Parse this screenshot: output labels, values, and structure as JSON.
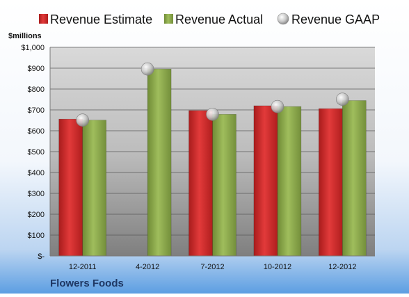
{
  "chart_data": {
    "type": "bar",
    "title": "",
    "company": "Flowers Foods",
    "unit_label": "$millions",
    "categories": [
      "12-2011",
      "4-2012",
      "7-2012",
      "10-2012",
      "12-2012"
    ],
    "series": [
      {
        "name": "Revenue Estimate",
        "kind": "bar",
        "color": "#d42a2a",
        "values": [
          656,
          null,
          697,
          720,
          706
        ]
      },
      {
        "name": "Revenue Actual",
        "kind": "bar",
        "color": "#8daa4c",
        "values": [
          651,
          896,
          679,
          716,
          745
        ]
      },
      {
        "name": "Revenue GAAP",
        "kind": "marker",
        "color": "#c8c8c8",
        "values": [
          651,
          896,
          679,
          716,
          751
        ]
      }
    ],
    "y_ticks": [
      "$-",
      "$100",
      "$200",
      "$300",
      "$400",
      "$500",
      "$600",
      "$700",
      "$800",
      "$900",
      "$1,000"
    ],
    "ylim": [
      0,
      1000
    ],
    "grid": true,
    "legend_position": "top"
  }
}
